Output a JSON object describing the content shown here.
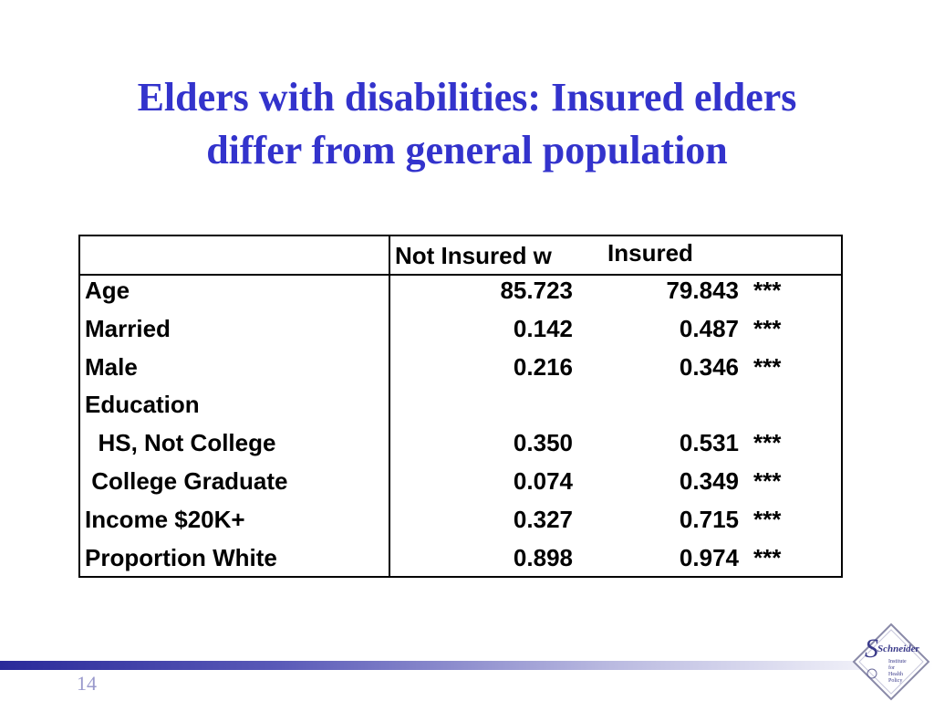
{
  "slide": {
    "title_line1": "Elders with disabilities: Insured elders",
    "title_line2": "differ from general population",
    "page_number": "14",
    "title_color": "#3333cc"
  },
  "table": {
    "headers": {
      "col1": "Not Insured w",
      "col2": "Insured"
    },
    "rows": [
      {
        "label": "Age",
        "not_insured": "85.723",
        "insured": "79.843",
        "sig": "***"
      },
      {
        "label": "Married",
        "not_insured": "0.142",
        "insured": "0.487",
        "sig": "***"
      },
      {
        "label": "Male",
        "not_insured": "0.216",
        "insured": "0.346",
        "sig": "***"
      },
      {
        "label": "Education",
        "not_insured": "",
        "insured": "",
        "sig": ""
      },
      {
        "label": "  HS, Not College",
        "not_insured": "0.350",
        "insured": "0.531",
        "sig": "***"
      },
      {
        "label": " College Graduate",
        "not_insured": "0.074",
        "insured": "0.349",
        "sig": "***"
      },
      {
        "label": "Income $20K+",
        "not_insured": "0.327",
        "insured": "0.715",
        "sig": "***"
      },
      {
        "label": "Proportion White",
        "not_insured": "0.898",
        "insured": "0.974",
        "sig": "***"
      }
    ]
  },
  "logo": {
    "name": "Schneider",
    "line1": "Institute",
    "line2": "for",
    "line3": "Health",
    "line4": "Policy"
  }
}
